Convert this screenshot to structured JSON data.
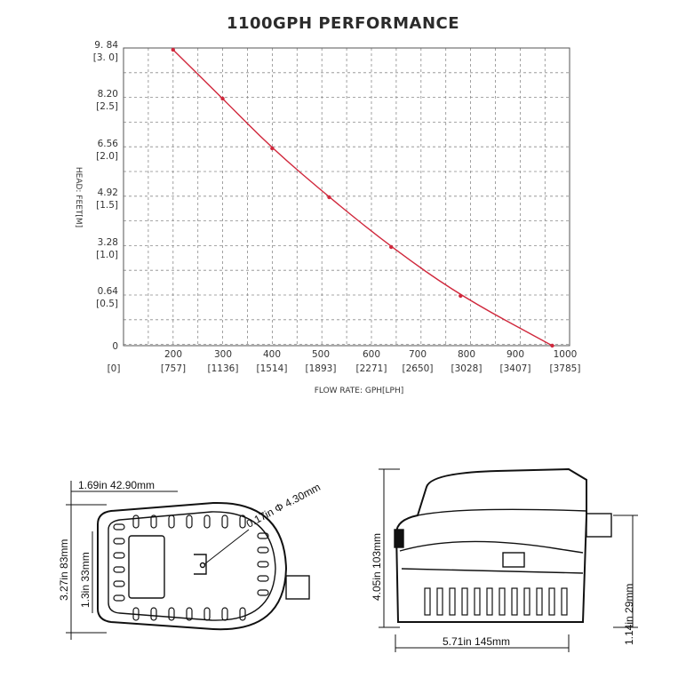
{
  "chart_data": {
    "type": "line",
    "title": "1100GPH PERFORMANCE",
    "xlabel": "FLOW RATE: GPH[LPH]",
    "ylabel": "HEAD: FEET[M]",
    "x_ticks": [
      {
        "gph": "",
        "lph": "[0]"
      },
      {
        "gph": "200",
        "lph": "[757]"
      },
      {
        "gph": "300",
        "lph": "[1136]"
      },
      {
        "gph": "400",
        "lph": "[1514]"
      },
      {
        "gph": "500",
        "lph": "[1893]"
      },
      {
        "gph": "600",
        "lph": "[2271]"
      },
      {
        "gph": "700",
        "lph": "[2650]"
      },
      {
        "gph": "800",
        "lph": "[3028]"
      },
      {
        "gph": "900",
        "lph": "[3407]"
      },
      {
        "gph": "1000",
        "lph": "[3785]"
      }
    ],
    "y_ticks": [
      {
        "feet": "0",
        "m": "",
        "value": 0
      },
      {
        "feet": "0.64",
        "m": "[0.5]",
        "value": 0.64
      },
      {
        "feet": "3.28",
        "m": "[1.0]",
        "value": 3.28
      },
      {
        "feet": "4.92",
        "m": "[1.5]",
        "value": 4.92
      },
      {
        "feet": "6.56",
        "m": "[2.0]",
        "value": 6.56
      },
      {
        "feet": "8.20",
        "m": "[2.5]",
        "value": 8.2
      },
      {
        "feet": "9. 84",
        "m": "[3. 0]",
        "value": 9.84
      }
    ],
    "series": [
      {
        "color": "#d0283c",
        "points": [
          {
            "x": 200,
            "y": 9.84
          },
          {
            "x": 300,
            "y": 8.2
          },
          {
            "x": 400,
            "y": 6.56
          },
          {
            "x": 515,
            "y": 4.92
          },
          {
            "x": 640,
            "y": 3.28
          },
          {
            "x": 780,
            "y": 0.64
          },
          {
            "x": 965,
            "y": 0
          }
        ]
      }
    ],
    "grid": true
  },
  "diagram": {
    "top_view": {
      "width_dim": "1.69in 42.90mm",
      "height_dim": "3.27in 83mm",
      "inner_dim": "1.3in 33mm",
      "hole_dim": "0.17in Φ 4.30mm"
    },
    "side_view": {
      "height_dim": "4.05in 103mm",
      "length_dim": "5.71in  145mm",
      "outlet_dim": "1.14in 29mm"
    }
  }
}
